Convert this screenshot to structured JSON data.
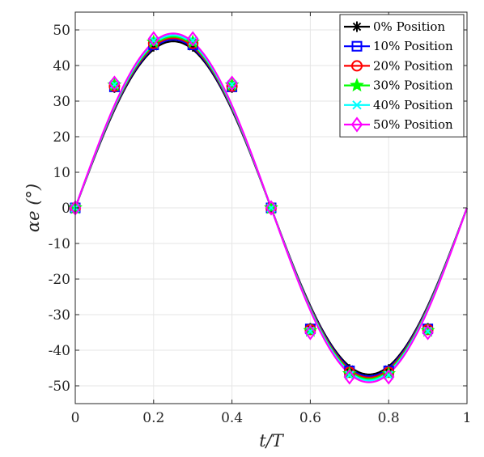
{
  "chart_data": {
    "type": "line",
    "xlabel": "t/T",
    "ylabel": "αe (°)",
    "xlim": [
      0,
      1
    ],
    "ylim": [
      -55,
      55
    ],
    "xticks": [
      "0",
      "0.2",
      "0.4",
      "0.6",
      "0.8",
      "1"
    ],
    "yticks": [
      "-50",
      "-40",
      "-30",
      "-20",
      "-10",
      "0",
      "10",
      "20",
      "30",
      "40",
      "50"
    ],
    "grid": true,
    "legend_position": "top-right",
    "marker_x": [
      0,
      0.1,
      0.2,
      0.3,
      0.4,
      0.5,
      0.6,
      0.7,
      0.8,
      0.9
    ],
    "series": [
      {
        "name": "0% Position",
        "amplitude": 46.8,
        "color": "#000000",
        "marker": "asterisk",
        "values": [
          0,
          33.8,
          45.4,
          45.4,
          33.8,
          0,
          -33.8,
          -45.4,
          -45.4,
          -33.8
        ]
      },
      {
        "name": "10% Position",
        "amplitude": 47.3,
        "color": "#0000ff",
        "marker": "square",
        "values": [
          0,
          34.0,
          45.8,
          45.8,
          34.0,
          0,
          -34.0,
          -45.8,
          -45.8,
          -34.0
        ]
      },
      {
        "name": "20% Position",
        "amplitude": 47.7,
        "color": "#ff0000",
        "marker": "circle",
        "values": [
          0,
          34.2,
          46.2,
          46.2,
          34.2,
          0,
          -34.2,
          -46.2,
          -46.2,
          -34.2
        ]
      },
      {
        "name": "30% Position",
        "amplitude": 48.1,
        "color": "#00ff00",
        "marker": "star",
        "values": [
          0,
          34.5,
          46.6,
          46.6,
          34.5,
          0,
          -34.5,
          -46.6,
          -46.6,
          -34.5
        ]
      },
      {
        "name": "40% Position",
        "amplitude": 48.5,
        "color": "#00ffff",
        "marker": "x",
        "values": [
          0,
          34.7,
          47.0,
          47.0,
          34.7,
          0,
          -34.7,
          -47.0,
          -47.0,
          -34.7
        ]
      },
      {
        "name": "50% Position",
        "amplitude": 49.0,
        "color": "#ff00ff",
        "marker": "diamond",
        "values": [
          0,
          35.0,
          47.5,
          47.5,
          35.0,
          0,
          -35.0,
          -47.5,
          -47.5,
          -35.0
        ]
      }
    ]
  }
}
